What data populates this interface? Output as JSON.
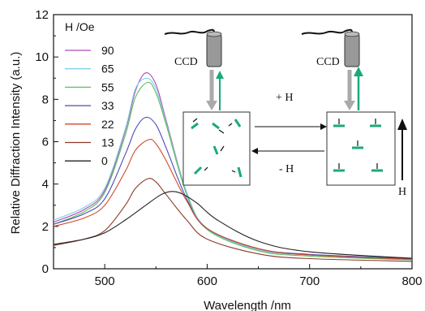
{
  "chart_data": {
    "type": "line",
    "xlabel": "Wavelength /nm",
    "ylabel": "Relative Diffraction Intensity (a.u.)",
    "xlim": [
      450,
      800
    ],
    "ylim": [
      0,
      12
    ],
    "xticks": [
      "500",
      "600",
      "700",
      "800"
    ],
    "yticks": [
      "0",
      "2",
      "4",
      "6",
      "8",
      "10",
      "12"
    ],
    "legend_title": "H /Oe",
    "legend_position": "top-left",
    "series": [
      {
        "name": "90",
        "color": "#b04ab8",
        "peak_x": 540,
        "values_x": [
          450,
          480,
          500,
          520,
          530,
          540,
          550,
          560,
          580,
          600,
          650,
          700,
          800
        ],
        "values_y": [
          2.2,
          2.8,
          3.7,
          6.5,
          8.4,
          9.25,
          8.7,
          7.0,
          3.6,
          1.9,
          0.9,
          0.65,
          0.45
        ]
      },
      {
        "name": "65",
        "color": "#7fd0e8",
        "peak_x": 541,
        "values_x": [
          450,
          480,
          500,
          520,
          530,
          541,
          550,
          560,
          580,
          600,
          650,
          700,
          800
        ],
        "values_y": [
          2.3,
          2.9,
          3.8,
          6.6,
          8.5,
          9.0,
          8.5,
          6.9,
          3.6,
          1.9,
          0.9,
          0.65,
          0.45
        ]
      },
      {
        "name": "55",
        "color": "#5cbf5c",
        "peak_x": 542,
        "values_x": [
          450,
          480,
          500,
          520,
          530,
          542,
          550,
          560,
          580,
          600,
          650,
          700,
          800
        ],
        "values_y": [
          2.1,
          2.7,
          3.6,
          6.3,
          8.1,
          8.8,
          8.3,
          6.8,
          3.5,
          1.85,
          0.85,
          0.6,
          0.42
        ]
      },
      {
        "name": "33",
        "color": "#4a4ab8",
        "peak_x": 540,
        "values_x": [
          450,
          480,
          500,
          520,
          530,
          540,
          550,
          560,
          580,
          600,
          650,
          700,
          800
        ],
        "values_y": [
          2.1,
          2.6,
          3.3,
          5.4,
          6.6,
          7.15,
          6.8,
          5.7,
          3.3,
          1.9,
          0.95,
          0.68,
          0.48
        ]
      },
      {
        "name": "22",
        "color": "#d04a2a",
        "peak_x": 543,
        "values_x": [
          450,
          480,
          500,
          520,
          530,
          543,
          550,
          560,
          580,
          600,
          650,
          700,
          800
        ],
        "values_y": [
          2.0,
          2.4,
          3.0,
          4.6,
          5.6,
          6.1,
          5.9,
          5.1,
          3.2,
          1.9,
          0.95,
          0.65,
          0.45
        ]
      },
      {
        "name": "13",
        "color": "#8b3a2a",
        "peak_x": 542,
        "values_x": [
          450,
          480,
          500,
          520,
          530,
          542,
          550,
          560,
          580,
          600,
          650,
          700,
          800
        ],
        "values_y": [
          1.1,
          1.4,
          1.8,
          3.0,
          3.8,
          4.25,
          4.1,
          3.5,
          2.3,
          1.4,
          0.7,
          0.48,
          0.35
        ]
      },
      {
        "name": "0",
        "color": "#222222",
        "peak_x": 565,
        "values_x": [
          450,
          480,
          500,
          520,
          540,
          555,
          565,
          575,
          590,
          610,
          650,
          700,
          800
        ],
        "values_y": [
          1.15,
          1.4,
          1.7,
          2.3,
          3.0,
          3.5,
          3.65,
          3.55,
          3.1,
          2.3,
          1.3,
          0.8,
          0.5
        ]
      }
    ]
  },
  "inset": {
    "ccd_left": "CCD",
    "ccd_right": "CCD",
    "plus_h": "+ H",
    "minus_h": "- H",
    "h_label": "H",
    "accent_color": "#1aaa7a",
    "probe_color": "#aaaaaa"
  }
}
